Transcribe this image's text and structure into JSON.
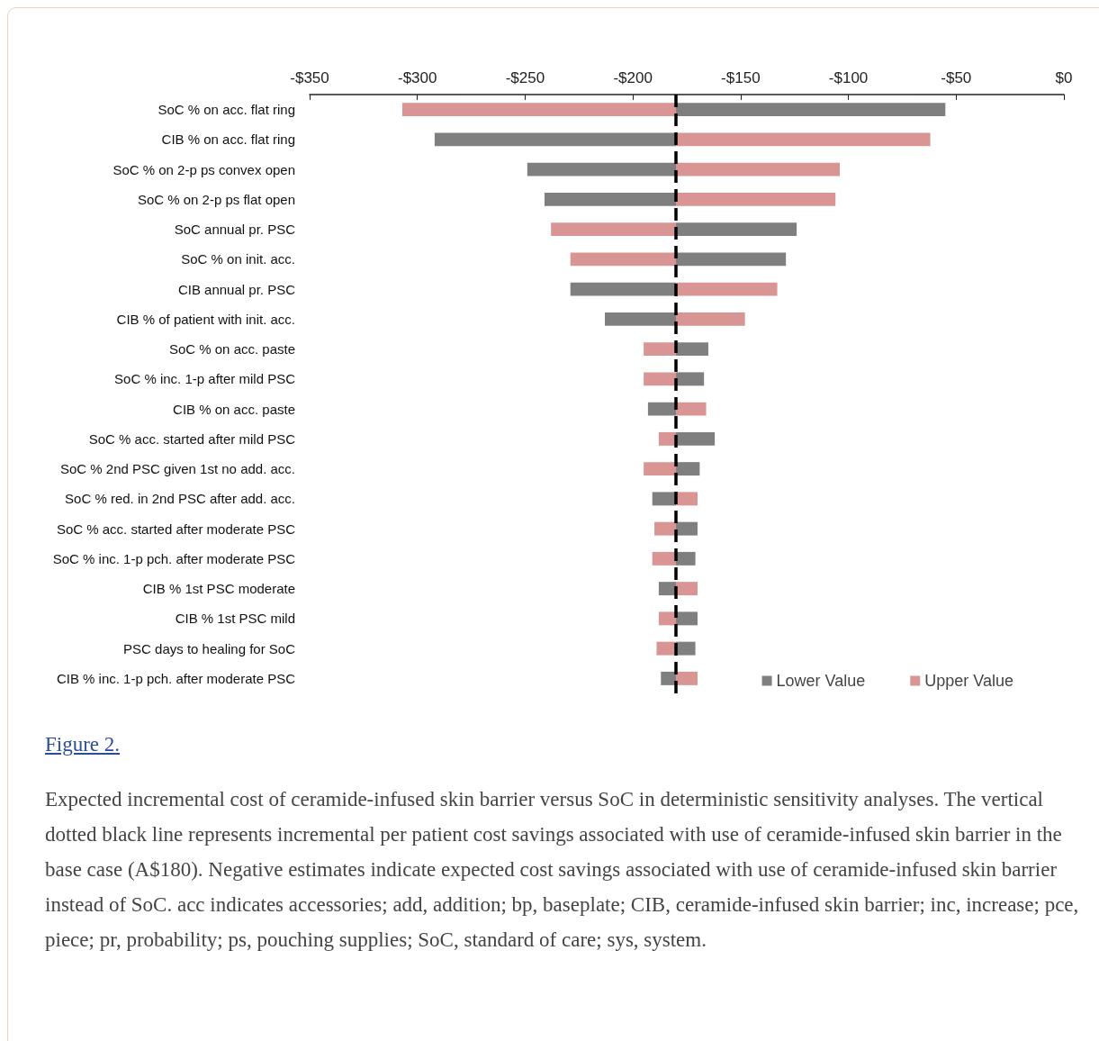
{
  "chart_data": {
    "type": "bar",
    "orientation": "horizontal",
    "title": "Figure 2.",
    "categories": [
      "SoC % on acc. flat ring",
      "CIB % on acc. flat ring",
      "SoC % on 2-p ps convex open",
      "SoC % on 2-p ps flat open",
      "SoC annual pr. PSC",
      "SoC % on init. acc.",
      "CIB annual pr. PSC",
      "CIB % of patient with init. acc.",
      "SoC % on acc. paste",
      "SoC % inc. 1-p after mild PSC",
      "CIB % on acc. paste",
      "SoC % acc. started after mild PSC",
      "SoC % 2nd PSC given 1st no add. acc.",
      "SoC % red. in 2nd PSC after add. acc.",
      "SoC % acc. started after moderate PSC",
      "SoC % inc. 1-p pch. after moderate PSC",
      "CIB % 1st PSC moderate",
      "CIB % 1st PSC mild",
      "PSC days to healing for SoC",
      "CIB % inc. 1-p pch. after moderate PSC"
    ],
    "series": [
      {
        "name": "Lower Value",
        "color": "#7f7f7f",
        "base": [
          -180,
          -180,
          -180,
          -180,
          -180,
          -180,
          -180,
          -180,
          -180,
          -180,
          -180,
          -180,
          -180,
          -180,
          -180,
          -180,
          -180,
          -180,
          -180,
          -180
        ],
        "values": [
          125,
          -112,
          -69,
          -61,
          56,
          51,
          -49,
          -33,
          15,
          13,
          -13,
          18,
          11,
          -11,
          10,
          9,
          -8,
          10,
          9,
          -7
        ]
      },
      {
        "name": "Upper Value",
        "color": "#d99594",
        "base": [
          -180,
          -180,
          -180,
          -180,
          -180,
          -180,
          -180,
          -180,
          -180,
          -180,
          -180,
          -180,
          -180,
          -180,
          -180,
          -180,
          -180,
          -180,
          -180,
          -180
        ],
        "values": [
          -127,
          118,
          76,
          74,
          -58,
          -49,
          47,
          32,
          -15,
          -15,
          14,
          -8,
          -15,
          10,
          -10,
          -11,
          10,
          -8,
          -9,
          10
        ]
      }
    ],
    "xlim": [
      -350,
      0
    ],
    "xticks": [
      {
        "value": -350,
        "label": "-$350"
      },
      {
        "value": -300,
        "label": "-$300"
      },
      {
        "value": -250,
        "label": "-$250"
      },
      {
        "value": -200,
        "label": "-$200"
      },
      {
        "value": -150,
        "label": "-$150"
      },
      {
        "value": -100,
        "label": "-$100"
      },
      {
        "value": -50,
        "label": "-$50"
      },
      {
        "value": 0,
        "label": "$0"
      }
    ],
    "ref_lines": [
      {
        "axis": "x",
        "value": -180,
        "color": "#000000",
        "line_style": "dashed"
      }
    ],
    "grid": false,
    "legend": "bottom right",
    "annotations": [
      "Expected incremental cost of ceramide-infused skin barrier versus SoC in deterministic sensitivity analyses. The vertical dotted black line represents incremental per patient cost savings associated with use of ceramide-infused skin barrier in the base case (A$180). Negative estimates indicate expected cost savings associated with use of ceramide-infused skin barrier instead of SoC. acc indicates accessories; add, addition; bp, baseplate; CIB, ceramide-infused skin barrier; inc, increase; pce, piece; pr, probability; ps, pouching supplies; SoC, standard of care; sys, system."
    ]
  }
}
